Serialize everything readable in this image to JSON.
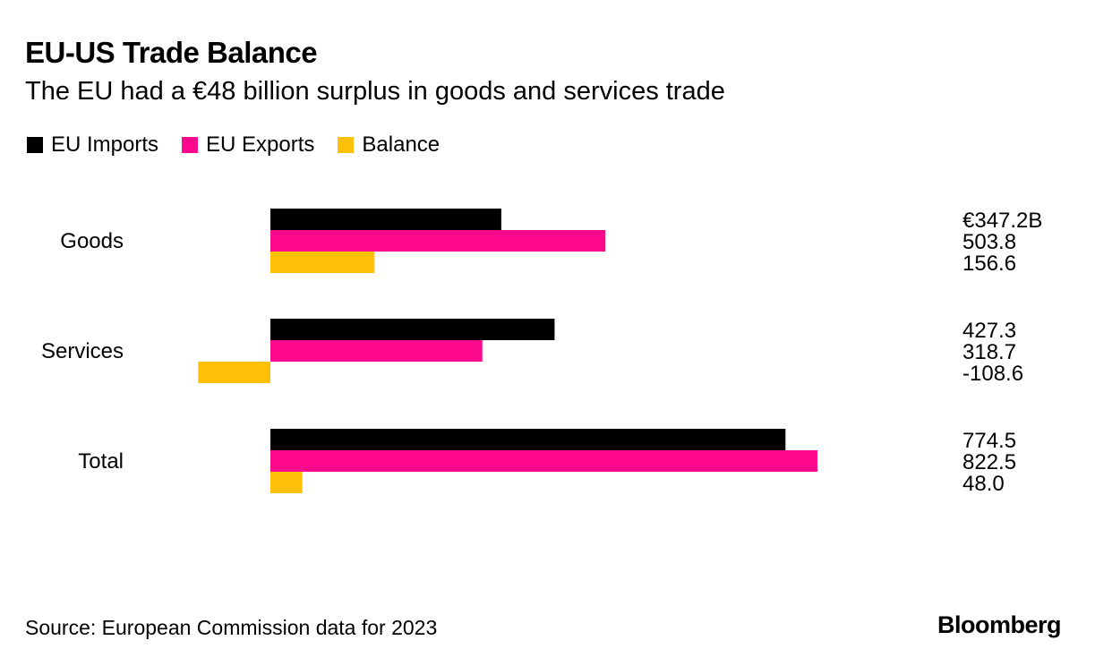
{
  "header": {
    "title": "EU-US Trade Balance",
    "subtitle": "The EU had a €48 billion surplus in goods and services trade"
  },
  "legend": [
    {
      "label": "EU Imports",
      "color": "#000000"
    },
    {
      "label": "EU Exports",
      "color": "#FF0A8C"
    },
    {
      "label": "Balance",
      "color": "#FFC107"
    }
  ],
  "footer": {
    "source": "Source: European Commission data for 2023",
    "brand": "Bloomberg"
  },
  "chart_data": {
    "type": "bar",
    "orientation": "horizontal",
    "categories": [
      "Goods",
      "Services",
      "Total"
    ],
    "series": [
      {
        "name": "EU Imports",
        "color": "#000000",
        "values": [
          347.2,
          427.3,
          774.5
        ],
        "labels": [
          "€347.2B",
          "427.3",
          "774.5"
        ]
      },
      {
        "name": "EU Exports",
        "color": "#FF0A8C",
        "values": [
          503.8,
          318.7,
          822.5
        ],
        "labels": [
          "503.8",
          "318.7",
          "822.5"
        ]
      },
      {
        "name": "Balance",
        "color": "#FFC107",
        "values": [
          156.6,
          -108.6,
          48.0
        ],
        "labels": [
          "156.6",
          "-108.6",
          "48.0"
        ]
      }
    ],
    "xlim": [
      -108.6,
      822.5
    ],
    "grid": false,
    "legend_position": "top-left"
  }
}
